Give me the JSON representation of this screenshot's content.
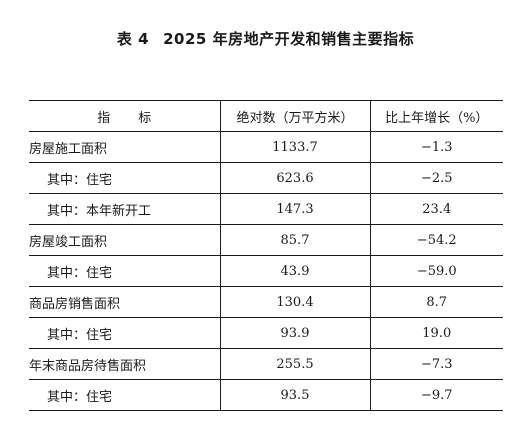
{
  "title": {
    "table_no": "表 4",
    "text": "2025 年房地产开发和销售主要指标"
  },
  "table": {
    "headers": {
      "indicator_a": "指",
      "indicator_b": "标",
      "absolute": "绝对数（万平方米）",
      "growth": "比上年增长（%）"
    },
    "rows": [
      {
        "label": "房屋施工面积",
        "value": "1133.7",
        "growth": "−1.3"
      },
      {
        "label": "其中：住宅",
        "value": "623.6",
        "growth": "−2.5"
      },
      {
        "label": "其中：本年新开工",
        "value": "147.3",
        "growth": "23.4"
      },
      {
        "label": "房屋竣工面积",
        "value": "85.7",
        "growth": "−54.2"
      },
      {
        "label": "其中：住宅",
        "value": "43.9",
        "growth": "−59.0"
      },
      {
        "label": "商品房销售面积",
        "value": "130.4",
        "growth": "8.7"
      },
      {
        "label": "其中：住宅",
        "value": "93.9",
        "growth": "19.0"
      },
      {
        "label": "年末商品房待售面积",
        "value": "255.5",
        "growth": "−7.3"
      },
      {
        "label": "其中：住宅",
        "value": "93.5",
        "growth": "−9.7"
      }
    ]
  }
}
